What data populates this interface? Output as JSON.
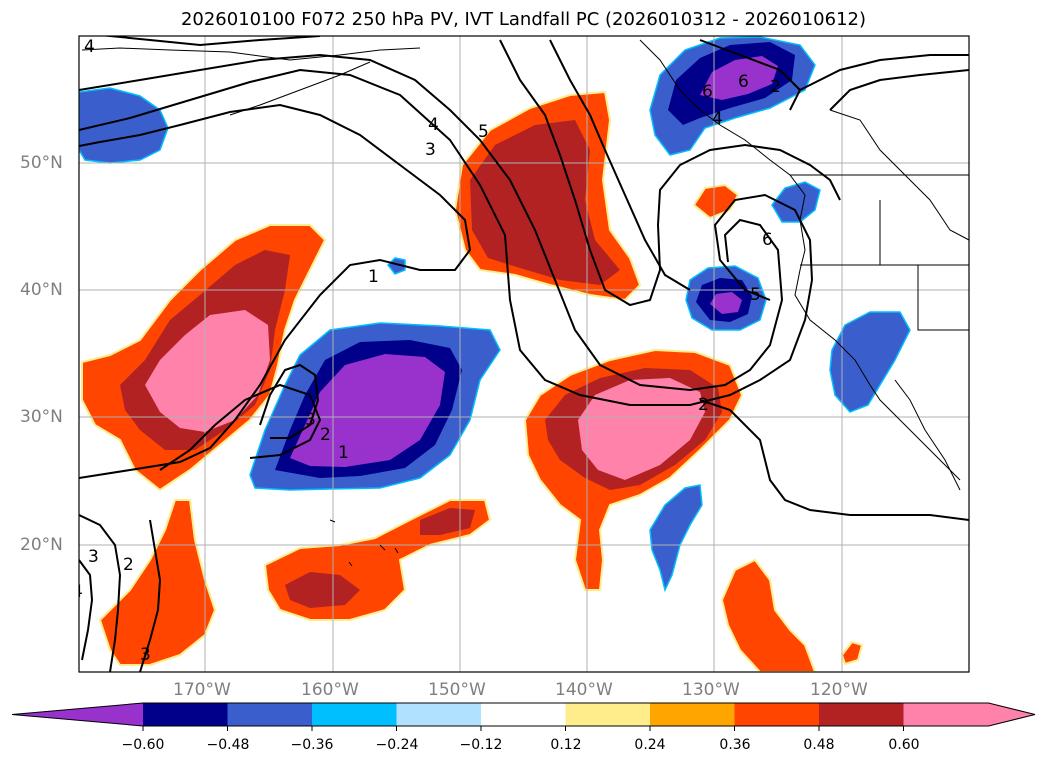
{
  "title": "2026010100 F072 250 hPa PV, IVT Landfall PC (2026010312 - 2026010612)",
  "axes": {
    "lon_labels": [
      "170°W",
      "160°W",
      "150°W",
      "140°W",
      "130°W",
      "120°W"
    ],
    "lat_labels": [
      "50°N",
      "40°N",
      "30°N",
      "20°N"
    ]
  },
  "colorbar": {
    "tick_labels": [
      "−0.60",
      "−0.48",
      "−0.36",
      "−0.24",
      "−0.12",
      "0.12",
      "0.24",
      "0.36",
      "0.48",
      "0.60"
    ],
    "bins": [
      {
        "color": "#9932cc"
      },
      {
        "color": "#00008b"
      },
      {
        "color": "#3a5fcd"
      },
      {
        "color": "#00bfff"
      },
      {
        "color": "#b0e2ff"
      },
      {
        "color": "#ffffff"
      },
      {
        "color": "#ffec8b"
      },
      {
        "color": "#ffa500"
      },
      {
        "color": "#ff4500"
      },
      {
        "color": "#b22222"
      },
      {
        "color": "#ff82ab"
      },
      {
        "color": "#ff82ab"
      }
    ]
  },
  "contour_labels": [
    "1",
    "2",
    "3",
    "4",
    "5",
    "6",
    "4",
    "3",
    "2",
    "1",
    "5",
    "6",
    "6",
    "2",
    "3",
    "2",
    "4",
    "4",
    "3"
  ]
}
